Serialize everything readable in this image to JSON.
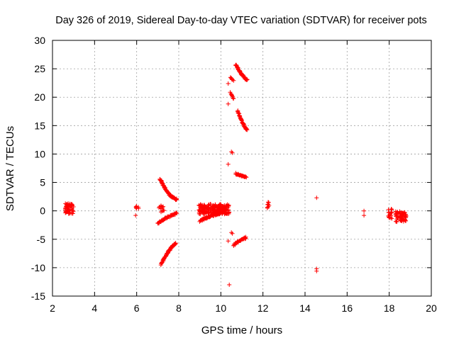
{
  "chart_data": {
    "type": "scatter",
    "title": "Day 326 of 2019, Sidereal Day-to-day VTEC variation (SDTVAR) for receiver pots",
    "xlabel": "GPS time / hours",
    "ylabel": "SDTVAR / TECUs",
    "xlim": [
      2,
      20
    ],
    "ylim": [
      -15,
      30
    ],
    "xticks": [
      2,
      4,
      6,
      8,
      10,
      12,
      14,
      16,
      18,
      20
    ],
    "yticks": [
      -15,
      -10,
      -5,
      0,
      5,
      10,
      15,
      20,
      25,
      30
    ],
    "grid": true,
    "marker": "+",
    "marker_color": "#ff0000",
    "frame_color": "#000000",
    "clusters": [
      {
        "x0": 2.6,
        "x1": 3.0,
        "y0": -0.5,
        "y1": 1.3,
        "n": 60
      },
      {
        "x0": 5.95,
        "x1": 6.1,
        "y0": 0.4,
        "y1": 1.0,
        "n": 8
      },
      {
        "x0": 7.0,
        "x1": 7.3,
        "y0": -0.3,
        "y1": 1.0,
        "n": 14
      },
      {
        "x0": 8.95,
        "x1": 10.4,
        "y0": -0.6,
        "y1": 1.2,
        "n": 220
      },
      {
        "x0": 12.2,
        "x1": 12.3,
        "y0": 0.3,
        "y1": 1.6,
        "n": 8
      },
      {
        "x0": 17.95,
        "x1": 18.15,
        "y0": -1.5,
        "y1": 0.5,
        "n": 18
      },
      {
        "x0": 18.3,
        "x1": 18.8,
        "y0": -2.0,
        "y1": -0.1,
        "n": 70
      }
    ],
    "arcs": [
      {
        "x0": 7.1,
        "y0": 5.7,
        "x1": 7.9,
        "y1": 2.0,
        "n": 70,
        "w": 0.25,
        "bend": 1.5
      },
      {
        "x0": 7.0,
        "y0": -2.2,
        "x1": 7.9,
        "y1": -0.4,
        "n": 45,
        "w": 0.3,
        "bend": 0.3
      },
      {
        "x0": 7.15,
        "y0": -9.5,
        "x1": 7.85,
        "y1": -5.7,
        "n": 55,
        "w": 0.3,
        "bend": 0.8
      },
      {
        "x0": 9.0,
        "y0": -1.8,
        "x1": 10.0,
        "y1": -0.4,
        "n": 60,
        "w": 0.3,
        "bend": 0.3
      },
      {
        "x0": 10.7,
        "y0": 25.8,
        "x1": 11.25,
        "y1": 23.0,
        "n": 45,
        "w": 0.3,
        "bend": 0.6
      },
      {
        "x0": 10.8,
        "y0": 17.6,
        "x1": 11.25,
        "y1": 14.2,
        "n": 45,
        "w": 0.3,
        "bend": 0.6
      },
      {
        "x0": 10.7,
        "y0": 6.6,
        "x1": 11.2,
        "y1": 5.9,
        "n": 25,
        "w": 0.25,
        "bend": 0.1
      },
      {
        "x0": 10.6,
        "y0": -6.0,
        "x1": 11.2,
        "y1": -4.7,
        "n": 30,
        "w": 0.3,
        "bend": 0.1
      },
      {
        "x0": 10.45,
        "y0": 20.8,
        "x1": 10.6,
        "y1": 19.7,
        "n": 8,
        "w": 0.15,
        "bend": 0
      },
      {
        "x0": 10.45,
        "y0": 23.5,
        "x1": 10.6,
        "y1": 22.9,
        "n": 6,
        "w": 0.15,
        "bend": 0
      }
    ],
    "points": [
      {
        "x": 5.95,
        "y": -0.8
      },
      {
        "x": 10.35,
        "y": 22.4
      },
      {
        "x": 10.35,
        "y": 18.8
      },
      {
        "x": 10.5,
        "y": 10.4
      },
      {
        "x": 10.55,
        "y": 10.2
      },
      {
        "x": 10.35,
        "y": 8.2
      },
      {
        "x": 10.5,
        "y": -3.8
      },
      {
        "x": 10.55,
        "y": -4.0
      },
      {
        "x": 10.35,
        "y": -5.3
      },
      {
        "x": 10.4,
        "y": -13.0
      },
      {
        "x": 14.55,
        "y": 2.3
      },
      {
        "x": 14.55,
        "y": -10.2
      },
      {
        "x": 14.55,
        "y": -10.6
      },
      {
        "x": 16.8,
        "y": 0.0
      },
      {
        "x": 16.8,
        "y": -0.8
      }
    ]
  }
}
